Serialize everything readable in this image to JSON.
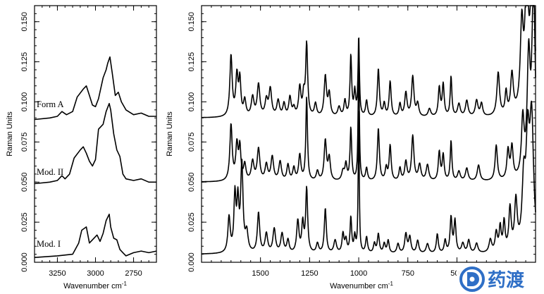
{
  "chart_data": [
    {
      "type": "line",
      "xlabel": "Wavenumber cm",
      "xlabel_superscript": "-1",
      "ylabel": "Raman Units",
      "xlim": [
        3400,
        2600
      ],
      "ylim": [
        0,
        0.16
      ],
      "xticks": [
        3250,
        3000,
        2750
      ],
      "xtick_labels": [
        "3250",
        "3000",
        "2750"
      ],
      "yticks": [
        0,
        0.025,
        0.05,
        0.075,
        0.1,
        0.125,
        0.15
      ],
      "ytick_labels": [
        "0.000",
        "0.025",
        "0.050",
        "0.075",
        "0.100",
        "0.125",
        "0.150"
      ],
      "series": [
        {
          "name": "Form A",
          "baseline": 0.089,
          "x": [
            3400,
            3300,
            3250,
            3220,
            3190,
            3150,
            3120,
            3080,
            3060,
            3040,
            3020,
            3000,
            2980,
            2950,
            2930,
            2920,
            2905,
            2890,
            2870,
            2850,
            2830,
            2800,
            2750,
            2700,
            2650,
            2600
          ],
          "y": [
            0.089,
            0.09,
            0.091,
            0.094,
            0.092,
            0.094,
            0.103,
            0.108,
            0.11,
            0.104,
            0.098,
            0.097,
            0.102,
            0.115,
            0.12,
            0.124,
            0.128,
            0.118,
            0.104,
            0.106,
            0.1,
            0.095,
            0.092,
            0.093,
            0.091,
            0.091
          ]
        },
        {
          "name": "Mod. II",
          "baseline": 0.048,
          "x": [
            3400,
            3300,
            3250,
            3220,
            3200,
            3170,
            3140,
            3100,
            3080,
            3060,
            3040,
            3020,
            3000,
            2980,
            2950,
            2930,
            2910,
            2900,
            2880,
            2860,
            2840,
            2820,
            2800,
            2750,
            2700,
            2650,
            2600
          ],
          "y": [
            0.049,
            0.05,
            0.051,
            0.054,
            0.052,
            0.055,
            0.065,
            0.07,
            0.072,
            0.068,
            0.063,
            0.06,
            0.064,
            0.083,
            0.086,
            0.094,
            0.099,
            0.095,
            0.08,
            0.07,
            0.066,
            0.055,
            0.052,
            0.051,
            0.052,
            0.05,
            0.05
          ]
        },
        {
          "name": "Mod. I",
          "baseline": 0.003,
          "x": [
            3400,
            3250,
            3150,
            3110,
            3090,
            3060,
            3040,
            3010,
            2990,
            2970,
            2950,
            2930,
            2910,
            2900,
            2880,
            2860,
            2840,
            2820,
            2800,
            2750,
            2700,
            2650,
            2600
          ],
          "y": [
            0.003,
            0.004,
            0.005,
            0.012,
            0.02,
            0.022,
            0.012,
            0.015,
            0.017,
            0.013,
            0.018,
            0.026,
            0.03,
            0.022,
            0.015,
            0.014,
            0.008,
            0.006,
            0.004,
            0.006,
            0.007,
            0.006,
            0.007
          ]
        }
      ],
      "annotations": [
        "Form A",
        "Mod. II",
        "Mod. I"
      ]
    },
    {
      "type": "line",
      "xlabel": "Wavenumber cm",
      "xlabel_superscript": "-1",
      "ylabel": "Raman Units",
      "xlim": [
        1800,
        100
      ],
      "ylim": [
        0,
        0.16
      ],
      "xticks": [
        1500,
        1250,
        1000,
        750,
        500
      ],
      "xtick_labels": [
        "1500",
        "1250",
        "1000",
        "750",
        "500"
      ],
      "yticks": [
        0,
        0.025,
        0.05,
        0.075,
        0.1,
        0.125,
        0.15
      ],
      "ytick_labels": [
        "0.000",
        "0.025",
        "0.050",
        "0.075",
        "0.100",
        "0.125",
        "0.150"
      ],
      "series": [
        {
          "name": "Form A",
          "baseline": 0.09,
          "peaks": [
            [
              1650,
              0.038,
              7
            ],
            [
              1620,
              0.025,
              7
            ],
            [
              1605,
              0.022,
              6
            ],
            [
              1580,
              0.01,
              7
            ],
            [
              1540,
              0.012,
              8
            ],
            [
              1510,
              0.02,
              8
            ],
            [
              1470,
              0.01,
              8
            ],
            [
              1450,
              0.017,
              8
            ],
            [
              1410,
              0.01,
              8
            ],
            [
              1380,
              0.008,
              7
            ],
            [
              1350,
              0.012,
              7
            ],
            [
              1330,
              0.005,
              7
            ],
            [
              1300,
              0.018,
              7
            ],
            [
              1280,
              0.012,
              6
            ],
            [
              1265,
              0.045,
              6
            ],
            [
              1220,
              0.008,
              7
            ],
            [
              1170,
              0.025,
              7
            ],
            [
              1150,
              0.014,
              7
            ],
            [
              1100,
              0.006,
              8
            ],
            [
              1070,
              0.01,
              6
            ],
            [
              1040,
              0.038,
              5
            ],
            [
              1020,
              0.015,
              5
            ],
            [
              1000,
              0.05,
              4
            ],
            [
              960,
              0.01,
              6
            ],
            [
              900,
              0.03,
              6
            ],
            [
              870,
              0.008,
              6
            ],
            [
              840,
              0.022,
              6
            ],
            [
              790,
              0.008,
              6
            ],
            [
              760,
              0.015,
              7
            ],
            [
              725,
              0.025,
              7
            ],
            [
              700,
              0.008,
              7
            ],
            [
              640,
              0.005,
              8
            ],
            [
              590,
              0.018,
              6
            ],
            [
              570,
              0.02,
              6
            ],
            [
              530,
              0.025,
              5
            ],
            [
              490,
              0.008,
              8
            ],
            [
              450,
              0.01,
              8
            ],
            [
              400,
              0.01,
              8
            ],
            [
              375,
              0.008,
              7
            ],
            [
              290,
              0.027,
              8
            ],
            [
              250,
              0.014,
              6
            ],
            [
              220,
              0.025,
              8
            ],
            [
              170,
              0.052,
              9
            ],
            [
              145,
              0.08,
              10
            ],
            [
              115,
              0.12,
              10
            ]
          ]
        },
        {
          "name": "Mod. II",
          "baseline": 0.05,
          "peaks": [
            [
              1650,
              0.035,
              7
            ],
            [
              1620,
              0.022,
              7
            ],
            [
              1605,
              0.02,
              6
            ],
            [
              1580,
              0.01,
              7
            ],
            [
              1540,
              0.012,
              8
            ],
            [
              1510,
              0.02,
              8
            ],
            [
              1470,
              0.01,
              8
            ],
            [
              1440,
              0.015,
              8
            ],
            [
              1400,
              0.012,
              8
            ],
            [
              1360,
              0.01,
              7
            ],
            [
              1330,
              0.008,
              7
            ],
            [
              1300,
              0.016,
              7
            ],
            [
              1265,
              0.052,
              5
            ],
            [
              1210,
              0.006,
              7
            ],
            [
              1170,
              0.025,
              7
            ],
            [
              1150,
              0.014,
              7
            ],
            [
              1080,
              0.006,
              8
            ],
            [
              1065,
              0.01,
              6
            ],
            [
              1040,
              0.033,
              5
            ],
            [
              1000,
              0.08,
              3.5
            ],
            [
              960,
              0.008,
              6
            ],
            [
              900,
              0.033,
              6
            ],
            [
              860,
              0.008,
              6
            ],
            [
              840,
              0.022,
              6
            ],
            [
              790,
              0.008,
              6
            ],
            [
              760,
              0.012,
              7
            ],
            [
              725,
              0.028,
              7
            ],
            [
              690,
              0.01,
              8
            ],
            [
              650,
              0.01,
              8
            ],
            [
              590,
              0.018,
              6
            ],
            [
              570,
              0.016,
              6
            ],
            [
              530,
              0.025,
              5
            ],
            [
              490,
              0.006,
              8
            ],
            [
              450,
              0.008,
              8
            ],
            [
              390,
              0.01,
              8
            ],
            [
              300,
              0.022,
              7
            ],
            [
              240,
              0.018,
              7
            ],
            [
              220,
              0.02,
              7
            ],
            [
              165,
              0.035,
              8
            ],
            [
              135,
              0.07,
              9
            ],
            [
              110,
              0.12,
              10
            ]
          ]
        },
        {
          "name": "Mod. I",
          "baseline": 0.005,
          "peaks": [
            [
              1660,
              0.022,
              7
            ],
            [
              1630,
              0.035,
              6
            ],
            [
              1615,
              0.03,
              6
            ],
            [
              1595,
              0.055,
              7
            ],
            [
              1570,
              0.012,
              8
            ],
            [
              1510,
              0.025,
              7
            ],
            [
              1470,
              0.012,
              8
            ],
            [
              1430,
              0.015,
              8
            ],
            [
              1390,
              0.012,
              8
            ],
            [
              1360,
              0.008,
              7
            ],
            [
              1310,
              0.02,
              7
            ],
            [
              1285,
              0.018,
              6
            ],
            [
              1265,
              0.04,
              6
            ],
            [
              1210,
              0.006,
              7
            ],
            [
              1170,
              0.028,
              6
            ],
            [
              1120,
              0.008,
              8
            ],
            [
              1080,
              0.012,
              6
            ],
            [
              1065,
              0.008,
              6
            ],
            [
              1040,
              0.022,
              5
            ],
            [
              1020,
              0.01,
              5
            ],
            [
              1000,
              0.095,
              3
            ],
            [
              960,
              0.01,
              6
            ],
            [
              920,
              0.006,
              6
            ],
            [
              900,
              0.012,
              6
            ],
            [
              870,
              0.006,
              6
            ],
            [
              850,
              0.008,
              6
            ],
            [
              800,
              0.006,
              7
            ],
            [
              760,
              0.012,
              7
            ],
            [
              740,
              0.01,
              7
            ],
            [
              700,
              0.008,
              7
            ],
            [
              650,
              0.006,
              8
            ],
            [
              600,
              0.012,
              6
            ],
            [
              560,
              0.008,
              6
            ],
            [
              530,
              0.022,
              6
            ],
            [
              510,
              0.02,
              6
            ],
            [
              470,
              0.006,
              8
            ],
            [
              440,
              0.008,
              7
            ],
            [
              400,
              0.006,
              8
            ],
            [
              330,
              0.008,
              8
            ],
            [
              300,
              0.012,
              7
            ],
            [
              280,
              0.015,
              6
            ],
            [
              260,
              0.018,
              6
            ],
            [
              230,
              0.026,
              7
            ],
            [
              200,
              0.03,
              8
            ],
            [
              160,
              0.04,
              10
            ],
            [
              140,
              0.06,
              10
            ],
            [
              120,
              0.08,
              12
            ]
          ]
        }
      ],
      "annotations": []
    }
  ],
  "watermark": {
    "text": "药渡",
    "mark_color": "#2f6fc6"
  }
}
